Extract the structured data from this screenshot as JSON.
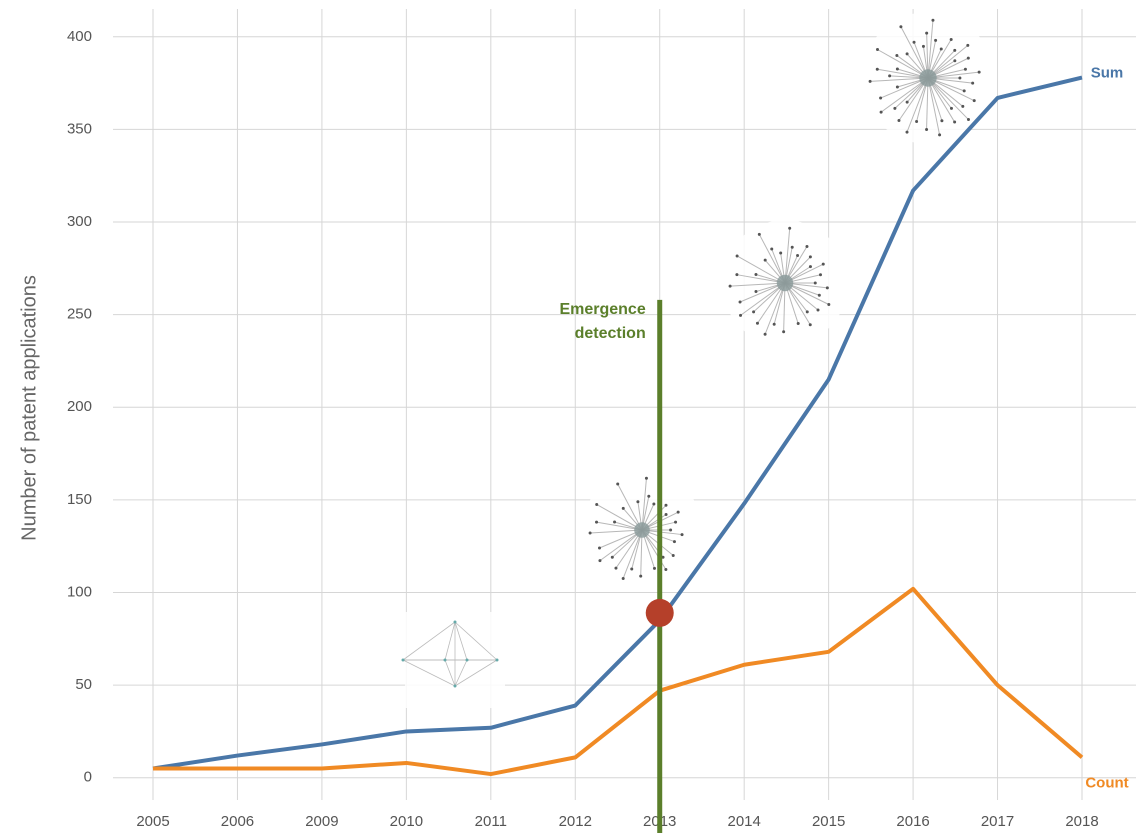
{
  "chart_data": {
    "type": "line",
    "y_label": "Number of patent applications",
    "categories": [
      "2005",
      "2006",
      "2009",
      "2010",
      "2011",
      "2012",
      "2013",
      "2014",
      "2015",
      "2016",
      "2017",
      "2018"
    ],
    "series": [
      {
        "name": "Sum",
        "color": "#4a77a8",
        "values": [
          5,
          12,
          18,
          25,
          27,
          39,
          85,
          148,
          215,
          317,
          367,
          378
        ]
      },
      {
        "name": "Count",
        "color": "#f08a24",
        "values": [
          5,
          5,
          5,
          8,
          2,
          11,
          47,
          61,
          68,
          102,
          50,
          11
        ]
      }
    ],
    "ylim": [
      -12,
      415
    ],
    "yticks": [
      0,
      50,
      100,
      150,
      200,
      250,
      300,
      350,
      400
    ],
    "grid": true,
    "annotation": {
      "lines": [
        "Emergence",
        "detection"
      ],
      "x": "2013",
      "y": 258,
      "color": "#5b7f2b"
    },
    "marker": {
      "x": "2013",
      "y": 89,
      "color": "#b5402a"
    }
  }
}
